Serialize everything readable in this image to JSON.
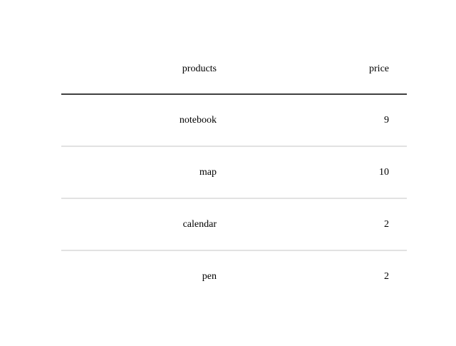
{
  "chart_data": {
    "type": "table",
    "columns": [
      "products",
      "price"
    ],
    "rows": [
      [
        "notebook",
        "9"
      ],
      [
        "map",
        "10"
      ],
      [
        "calendar",
        "2"
      ],
      [
        "pen",
        "2"
      ]
    ]
  },
  "colors": {
    "header_rule": "#000000",
    "row_rule": "#d9d9d9",
    "text": "#000000",
    "background": "#ffffff"
  }
}
